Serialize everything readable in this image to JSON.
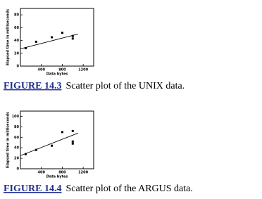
{
  "chart_data": [
    {
      "type": "scatter",
      "caption_label": "FIGURE 14.3",
      "caption_text": "Scatter plot of the UNIX data.",
      "xlabel": "Data bytes",
      "ylabel": "Elapsed time in milliseconds",
      "x": [
        100,
        300,
        600,
        800,
        1000,
        1000
      ],
      "values": [
        28,
        38,
        45,
        52,
        47,
        43
      ],
      "trend_x": [
        0,
        1100
      ],
      "trend_y": [
        27,
        50
      ],
      "xlim": [
        0,
        1400
      ],
      "xticks": [
        400,
        800,
        1200
      ],
      "ylim": [
        0,
        90
      ],
      "yticks": [
        0,
        20,
        40,
        60,
        80
      ],
      "color": "#000000"
    },
    {
      "type": "scatter",
      "caption_label": "FIGURE 14.4",
      "caption_text": "Scatter plot of the ARGUS data.",
      "xlabel": "Data bytes",
      "ylabel": "Elapsed time in milliseconds",
      "x": [
        100,
        300,
        600,
        800,
        1000,
        1000,
        1000
      ],
      "values": [
        28,
        36,
        44,
        70,
        72,
        52,
        48
      ],
      "trend_x": [
        0,
        1100
      ],
      "trend_y": [
        25,
        68
      ],
      "xlim": [
        0,
        1400
      ],
      "xticks": [
        400,
        800,
        1200
      ],
      "ylim": [
        0,
        110
      ],
      "yticks": [
        0,
        20,
        40,
        60,
        80,
        100
      ],
      "color": "#000000"
    }
  ]
}
